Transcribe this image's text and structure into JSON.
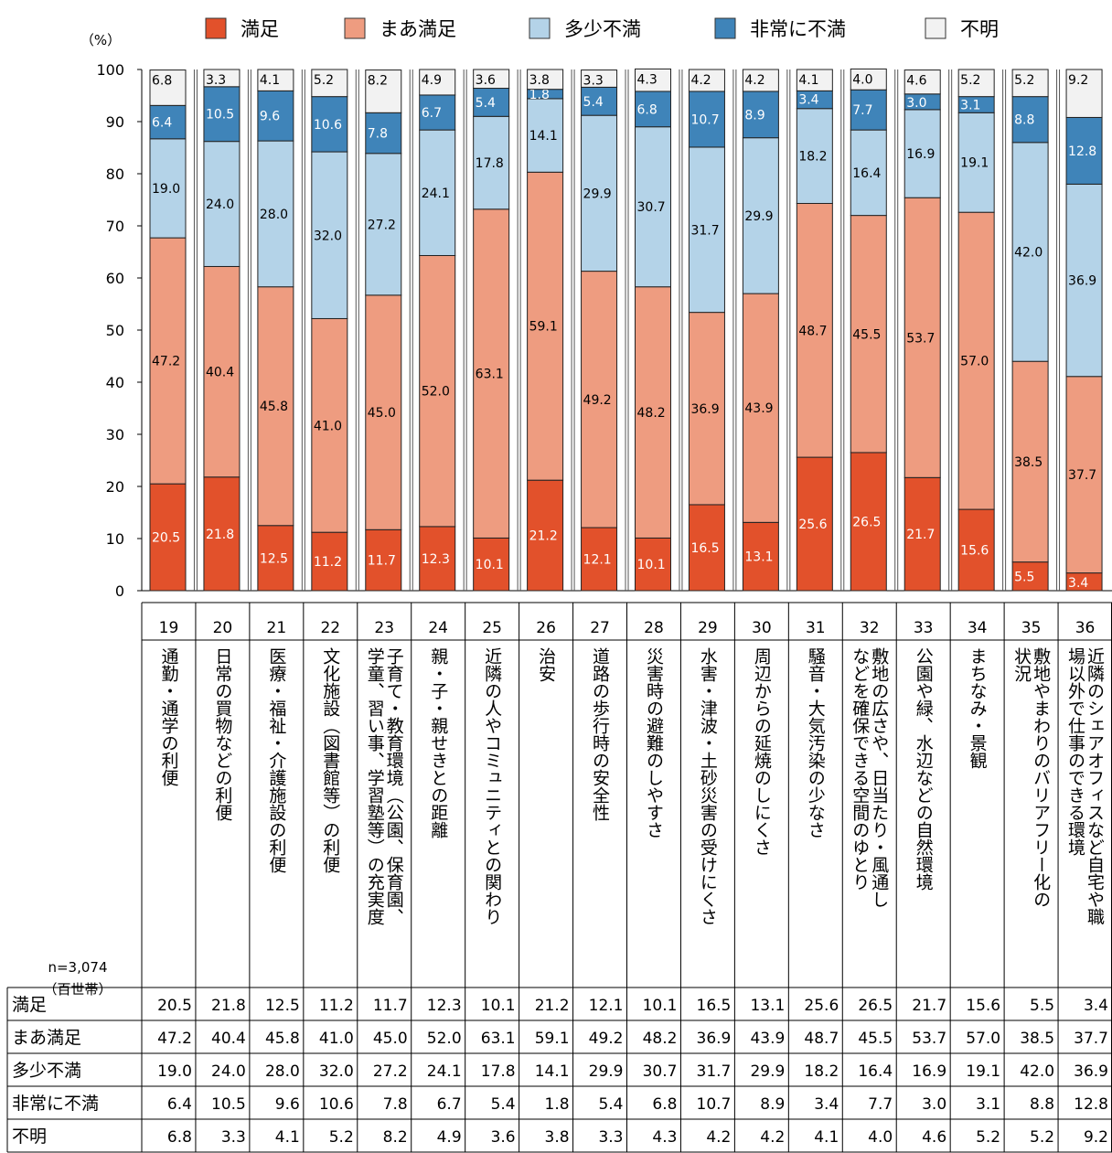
{
  "chart_data": {
    "type": "bar",
    "stacked": true,
    "orientation": "vertical",
    "unit_label": "（%）",
    "sample_label": "n=3,074",
    "sample_unit": "（百世帯）",
    "ylim": [
      0,
      100
    ],
    "yticks": [
      "0",
      "10",
      "20",
      "30",
      "40",
      "50",
      "60",
      "70",
      "80",
      "90",
      "100"
    ],
    "legend_position": "top",
    "numbers": [
      "19",
      "20",
      "21",
      "22",
      "23",
      "24",
      "25",
      "26",
      "27",
      "28",
      "29",
      "30",
      "31",
      "32",
      "33",
      "34",
      "35",
      "36"
    ],
    "categories": [
      "通勤・通学の利便",
      "日常の買物などの利便",
      "医療・福祉・介護施設の利便",
      "文化施設（図書館等）の利便",
      "子育て・教育環境（公園、保育園、学童、習い事、学習塾等）の充実度",
      "親・子・親せきとの距離",
      "近隣の人やコミュニティとの関わり",
      "治安",
      "道路の歩行時の安全性",
      "災害時の避難のしやすさ",
      "水害・津波・土砂災害の受けにくさ",
      "周辺からの延焼のしにくさ",
      "騒音・大気汚染の少なさ",
      "敷地の広さや、日当たり・風通しなどを確保できる空間のゆとり",
      "公園や緑、水辺などの自然環境",
      "まちなみ・景観",
      "敷地やまわりのバリアフリー化の状況",
      "近隣のシェアオフィスなど自宅や職場以外で仕事のできる環境"
    ],
    "category_lines": [
      [
        "通勤・通学の利便"
      ],
      [
        "日常の買物などの利便"
      ],
      [
        "医療・福祉・介護施設の利便"
      ],
      [
        "文化施設（図書館等）の利便"
      ],
      [
        "子育て・教育環境（公園、保育園、",
        "学童、習い事、学習塾等）の充実度"
      ],
      [
        "親・子・親せきとの距離"
      ],
      [
        "近隣の人やコミュニティとの関わり"
      ],
      [
        "治安"
      ],
      [
        "道路の歩行時の安全性"
      ],
      [
        "災害時の避難のしやすさ"
      ],
      [
        "水害・津波・土砂災害の受けにくさ"
      ],
      [
        "周辺からの延焼のしにくさ"
      ],
      [
        "騒音・大気汚染の少なさ"
      ],
      [
        "敷地の広さや、日当たり・風通し",
        "などを確保できる空間のゆとり"
      ],
      [
        "公園や緑、水辺などの自然環境"
      ],
      [
        "まちなみ・景観"
      ],
      [
        "敷地やまわりのバリアフリー化の",
        "状況"
      ],
      [
        "近隣のシェアオフィスなど自宅や職",
        "場以外で仕事のできる環境"
      ]
    ],
    "series": [
      {
        "name": "満足",
        "color": "#e2512b",
        "label_color": "#ffffff",
        "values": [
          20.5,
          21.8,
          12.5,
          11.2,
          11.7,
          12.3,
          10.1,
          21.2,
          12.1,
          10.1,
          16.5,
          13.1,
          25.6,
          26.5,
          21.7,
          15.6,
          5.5,
          3.4
        ],
        "labels": [
          "20.5",
          "21.8",
          "12.5",
          "11.2",
          "11.7",
          "12.3",
          "10.1",
          "21.2",
          "12.1",
          "10.1",
          "16.5",
          "13.1",
          "25.6",
          "26.5",
          "21.7",
          "15.6",
          "5.5",
          "3.4"
        ]
      },
      {
        "name": "まあ満足",
        "color": "#ee9c80",
        "label_color": "#000000",
        "values": [
          47.2,
          40.4,
          45.8,
          41.0,
          45.0,
          52.0,
          63.1,
          59.1,
          49.2,
          48.2,
          36.9,
          43.9,
          48.7,
          45.5,
          53.7,
          57.0,
          38.5,
          37.7
        ],
        "labels": [
          "47.2",
          "40.4",
          "45.8",
          "41.0",
          "45.0",
          "52.0",
          "63.1",
          "59.1",
          "49.2",
          "48.2",
          "36.9",
          "43.9",
          "48.7",
          "45.5",
          "53.7",
          "57.0",
          "38.5",
          "37.7"
        ]
      },
      {
        "name": "多少不満",
        "color": "#b4d3e8",
        "label_color": "#000000",
        "values": [
          19.0,
          24.0,
          28.0,
          32.0,
          27.2,
          24.1,
          17.8,
          14.1,
          29.9,
          30.7,
          31.7,
          29.9,
          18.2,
          16.4,
          16.9,
          19.1,
          42.0,
          36.9
        ],
        "labels": [
          "19.0",
          "24.0",
          "28.0",
          "32.0",
          "27.2",
          "24.1",
          "17.8",
          "14.1",
          "29.9",
          "30.7",
          "31.7",
          "29.9",
          "18.2",
          "16.4",
          "16.9",
          "19.1",
          "42.0",
          "36.9"
        ]
      },
      {
        "name": "非常に不満",
        "color": "#3f84b9",
        "label_color": "#ffffff",
        "values": [
          6.4,
          10.5,
          9.6,
          10.6,
          7.8,
          6.7,
          5.4,
          1.8,
          5.4,
          6.8,
          10.7,
          8.9,
          3.4,
          7.7,
          3.0,
          3.1,
          8.8,
          12.8
        ],
        "labels": [
          "6.4",
          "10.5",
          "9.6",
          "10.6",
          "7.8",
          "6.7",
          "5.4",
          "1.8",
          "5.4",
          "6.8",
          "10.7",
          "8.9",
          "3.4",
          "7.7",
          "3.0",
          "3.1",
          "8.8",
          "12.8"
        ]
      },
      {
        "name": "不明",
        "color": "#f2f2f2",
        "label_color": "#000000",
        "values": [
          6.8,
          3.3,
          4.1,
          5.2,
          8.2,
          4.9,
          3.6,
          3.8,
          3.3,
          4.3,
          4.2,
          4.2,
          4.1,
          4.0,
          4.6,
          5.2,
          5.2,
          9.2
        ],
        "labels": [
          "6.8",
          "3.3",
          "4.1",
          "5.2",
          "8.2",
          "4.9",
          "3.6",
          "3.8",
          "3.3",
          "4.3",
          "4.2",
          "4.2",
          "4.1",
          "4.0",
          "4.6",
          "5.2",
          "5.2",
          "9.2"
        ]
      }
    ]
  }
}
